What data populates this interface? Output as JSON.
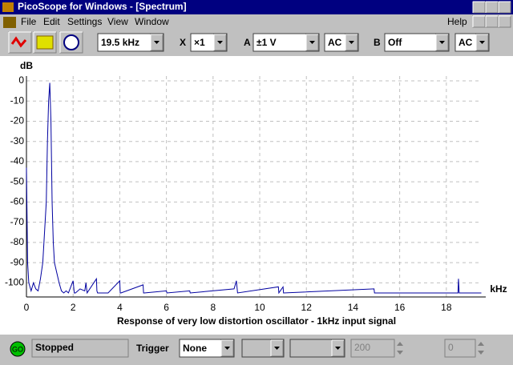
{
  "window": {
    "title": "PicoScope for Windows - [Spectrum]",
    "menu": [
      "File",
      "Edit",
      "Settings",
      "View",
      "Window",
      "Help"
    ]
  },
  "toolbar": {
    "timebase": "19.5 kHz",
    "x_label": "X",
    "x_zoom": "×1",
    "a_label": "A",
    "a_range": "±1 V",
    "a_coupling": "AC",
    "b_label": "B",
    "b_range": "Off",
    "b_coupling": "AC"
  },
  "chart_data": {
    "type": "line",
    "title": "Response of very low distortion oscillator - 1kHz input signal",
    "y_label": "dB",
    "x_label": "kHz",
    "x": [
      0,
      0.05,
      0.1,
      0.2,
      0.3,
      0.4,
      0.5,
      0.6,
      0.7,
      0.8,
      0.85,
      0.9,
      0.95,
      1.0,
      1.05,
      1.1,
      1.15,
      1.2,
      1.3,
      1.4,
      1.5,
      1.6,
      1.7,
      1.8,
      2.0,
      2.05,
      2.1,
      2.3,
      2.5,
      2.55,
      2.6,
      3.0,
      3.02,
      3.05,
      3.5,
      4.0,
      4.02,
      4.05,
      5.0,
      5.02,
      5.05,
      6.0,
      6.02,
      7.0,
      7.02,
      8.9,
      9.0,
      9.05,
      10.8,
      10.82,
      11.0,
      11.02,
      14.9,
      14.92,
      18.5,
      18.52,
      18.55,
      19.5
    ],
    "values": [
      -43,
      -90,
      -100,
      -104,
      -100,
      -103,
      -104,
      -98,
      -90,
      -70,
      -60,
      -30,
      -10,
      -1,
      -20,
      -60,
      -80,
      -90,
      -95,
      -100,
      -104,
      -105,
      -104,
      -105,
      -99,
      -105,
      -105,
      -103,
      -104,
      -100,
      -105,
      -98,
      -104,
      -105,
      -105,
      -99,
      -105,
      -105,
      -101,
      -105,
      -105,
      -104,
      -105,
      -104,
      -105,
      -103,
      -99,
      -105,
      -102,
      -105,
      -102,
      -105,
      -103,
      -105,
      -105,
      -98,
      -105,
      -105
    ],
    "color": "#0000a0",
    "xlim": [
      0,
      19.5
    ],
    "ylim": [
      -107,
      0
    ],
    "xticks": [
      0,
      2,
      4,
      6,
      8,
      10,
      12,
      14,
      16,
      18
    ],
    "yticks": [
      0,
      -10,
      -20,
      -30,
      -40,
      -50,
      -60,
      -70,
      -80,
      -90,
      -100
    ],
    "grid": true
  },
  "status": {
    "go": "GO",
    "state": "Stopped",
    "trigger_label": "Trigger",
    "trigger_mode": "None",
    "trigger_level": "200",
    "delay": "0"
  }
}
